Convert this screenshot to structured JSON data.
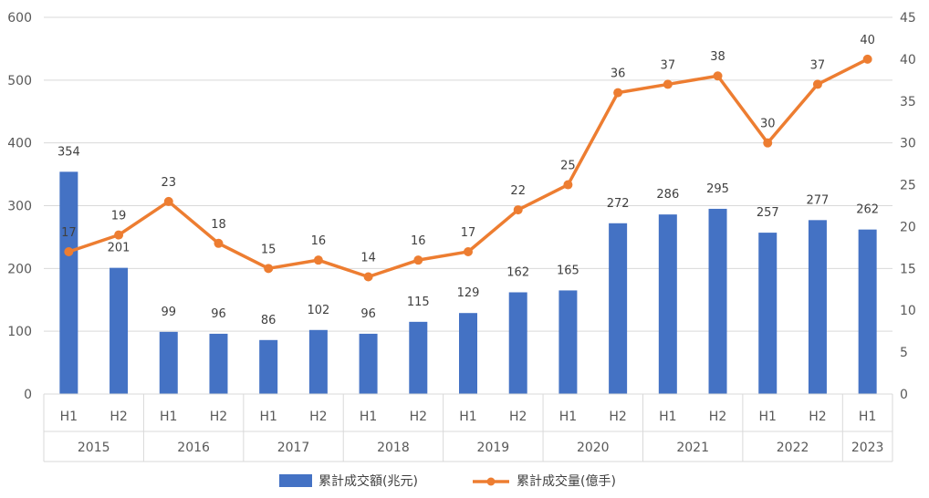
{
  "chart_data": {
    "type": "bar+line",
    "title": "",
    "categories": [
      "H1",
      "H2",
      "H1",
      "H2",
      "H1",
      "H2",
      "H1",
      "H2",
      "H1",
      "H2",
      "H1",
      "H2",
      "H1",
      "H2",
      "H1",
      "H2",
      "H1"
    ],
    "groups": [
      {
        "label": "2015",
        "span": 2
      },
      {
        "label": "2016",
        "span": 2
      },
      {
        "label": "2017",
        "span": 2
      },
      {
        "label": "2018",
        "span": 2
      },
      {
        "label": "2019",
        "span": 2
      },
      {
        "label": "2020",
        "span": 2
      },
      {
        "label": "2021",
        "span": 2
      },
      {
        "label": "2022",
        "span": 2
      },
      {
        "label": "2023",
        "span": 1
      }
    ],
    "series": [
      {
        "name": "累計成交額(兆元)",
        "kind": "bar",
        "axis": "left",
        "color": "#4472C4",
        "values": [
          354,
          201,
          99,
          96,
          86,
          102,
          96,
          115,
          129,
          162,
          165,
          272,
          286,
          295,
          257,
          277,
          262
        ]
      },
      {
        "name": "累計成交量(億手)",
        "kind": "line",
        "axis": "right",
        "color": "#ED7D31",
        "values": [
          17,
          19,
          23,
          18,
          15,
          16,
          14,
          16,
          17,
          22,
          25,
          36,
          37,
          38,
          30,
          37,
          40
        ]
      }
    ],
    "y_left": {
      "min": 0,
      "max": 600,
      "ticks": [
        "0",
        "100",
        "200",
        "300",
        "400",
        "500",
        "600"
      ]
    },
    "y_right": {
      "min": 0,
      "max": 45,
      "ticks": [
        "0",
        "5",
        "10",
        "15",
        "20",
        "25",
        "30",
        "35",
        "40",
        "45"
      ]
    },
    "grid": true,
    "legend_position": "bottom"
  }
}
